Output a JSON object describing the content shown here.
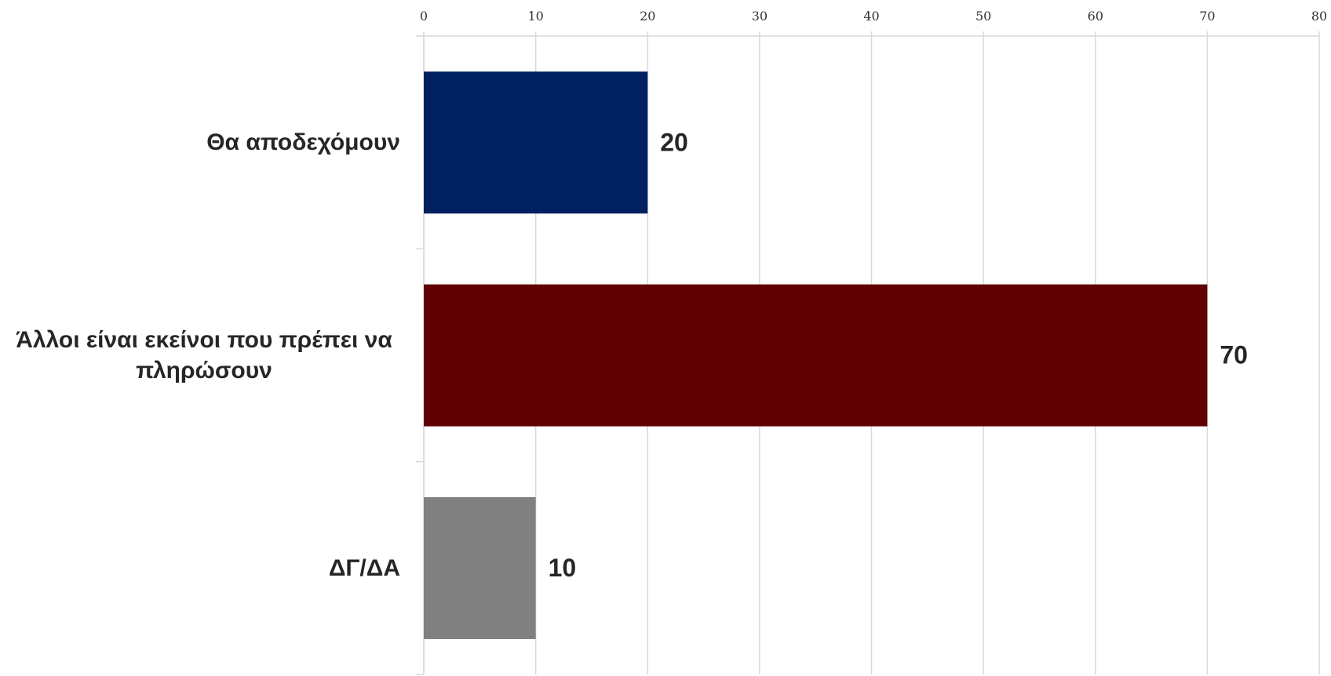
{
  "chart_data": {
    "type": "bar",
    "orientation": "horizontal",
    "categories": [
      "Θα αποδεχόμουν",
      "Άλλοι είναι εκείνοι που πρέπει να πληρώσουν",
      "ΔΓ/ΔΑ"
    ],
    "values": [
      20,
      70,
      10
    ],
    "colors": [
      "#002060",
      "#600000",
      "#808080"
    ],
    "xlim": [
      0,
      80
    ],
    "xticks": [
      0,
      10,
      20,
      30,
      40,
      50,
      60,
      70,
      80
    ],
    "grid": true
  }
}
